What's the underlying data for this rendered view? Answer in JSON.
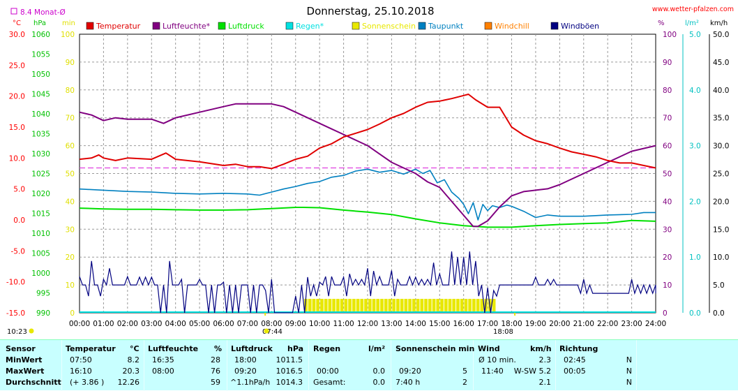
{
  "title": "Donnerstag, 25.10.2018",
  "site": "www.wetter-pfalzen.com",
  "monthly_avg_label": "8.4 Monat-Ø",
  "unit_labels": {
    "temp": "°C",
    "hpa": "hPa",
    "min": "min",
    "pct": "%",
    "lm2": "l/m²",
    "kmh": "km/h"
  },
  "sunrise_label": "07:44",
  "sunset_label": "18:08",
  "corner_time": "10:23",
  "colors": {
    "temperature": "#e00000",
    "humidity": "#800080",
    "pressure": "#00e000",
    "rain": "#00e0e0",
    "sunshine": "#e8e800",
    "dewpoint": "#0080c0",
    "windchill": "#ff8000",
    "gusts": "#000080",
    "avg_line": "#e040e0",
    "stats_bg": "#c8ffff"
  },
  "legend": [
    {
      "label": "Temperatur",
      "color": "#e00000"
    },
    {
      "label": "Luftfeuchte*",
      "color": "#800080"
    },
    {
      "label": "Luftdruck",
      "color": "#00e000"
    },
    {
      "label": "Regen*",
      "color": "#00e0e0"
    },
    {
      "label": "Sonnenschein",
      "color": "#e8e800"
    },
    {
      "label": "Taupunkt",
      "color": "#0080c0"
    },
    {
      "label": "Windchill",
      "color": "#ff8000"
    },
    {
      "label": "Windböen",
      "color": "#000080"
    }
  ],
  "chart_data": {
    "type": "line",
    "title": "Donnerstag, 25.10.2018",
    "x_unit": "hour of day",
    "x_ticks": [
      "00:00",
      "01:00",
      "02:00",
      "03:00",
      "04:00",
      "05:00",
      "06:00",
      "07:00",
      "08:00",
      "09:00",
      "10:00",
      "11:00",
      "12:00",
      "13:00",
      "14:00",
      "15:00",
      "16:00",
      "17:00",
      "18:00",
      "19:00",
      "20:00",
      "21:00",
      "22:00",
      "23:00",
      "24:00"
    ],
    "axes": {
      "temperature": {
        "unit": "°C",
        "range": [
          -15,
          30
        ],
        "ticks": [
          "30.0",
          "25.0",
          "20.0",
          "15.0",
          "10.0",
          "5.0",
          "0.0",
          "-5.0",
          "-10.0",
          "-15.0"
        ]
      },
      "pressure": {
        "unit": "hPa",
        "range": [
          990,
          1060
        ],
        "ticks": [
          "1060",
          "1055",
          "1050",
          "1045",
          "1040",
          "1035",
          "1030",
          "1025",
          "1020",
          "1015",
          "1010",
          "1005",
          "1000",
          "995",
          "990"
        ]
      },
      "minutes": {
        "unit": "min",
        "range": [
          0,
          100
        ],
        "ticks": [
          "100",
          "90",
          "80",
          "70",
          "60",
          "50",
          "40",
          "30",
          "20",
          "10",
          "0"
        ]
      },
      "humidity": {
        "unit": "%",
        "range": [
          0,
          100
        ],
        "ticks": [
          "100",
          "90",
          "80",
          "70",
          "60",
          "50",
          "40",
          "30",
          "20",
          "10",
          "0"
        ]
      },
      "rain": {
        "unit": "l/m²",
        "range": [
          0,
          5
        ],
        "ticks": [
          "5.0",
          "4.0",
          "3.0",
          "2.0",
          "1.0",
          "0.0"
        ]
      },
      "wind": {
        "unit": "km/h",
        "range": [
          0,
          50
        ],
        "ticks": [
          "50.0",
          "45.0",
          "40.0",
          "35.0",
          "30.0",
          "25.0",
          "20.0",
          "15.0",
          "10.0",
          "5.0",
          "0.0"
        ]
      }
    },
    "grid": true,
    "monthly_avg_temp": 8.4,
    "series": [
      {
        "name": "Temperatur",
        "axis": "temperature",
        "x": [
          0,
          0.5,
          0.8,
          1,
          1.5,
          2,
          3,
          3.6,
          4,
          5,
          6,
          6.5,
          7,
          7.5,
          8,
          8.5,
          9,
          9.5,
          10,
          10.5,
          11,
          11.5,
          12,
          12.5,
          13,
          13.5,
          14,
          14.5,
          15,
          15.5,
          16,
          16.2,
          16.5,
          17,
          17.5,
          18,
          18.5,
          19,
          19.5,
          20,
          20.5,
          21,
          21.5,
          22,
          22.5,
          23,
          23.5,
          24
        ],
        "y": [
          9.8,
          10.0,
          10.5,
          10.0,
          9.6,
          10.0,
          9.8,
          10.8,
          9.8,
          9.4,
          8.8,
          9.0,
          8.6,
          8.6,
          8.3,
          9.0,
          9.8,
          10.3,
          11.6,
          12.3,
          13.4,
          14.0,
          14.6,
          15.5,
          16.5,
          17.2,
          18.2,
          19.0,
          19.2,
          19.6,
          20.1,
          20.3,
          19.4,
          18.2,
          18.2,
          15.0,
          13.7,
          12.8,
          12.3,
          11.6,
          11.0,
          10.6,
          10.2,
          9.6,
          9.2,
          9.2,
          8.8,
          8.4
        ]
      },
      {
        "name": "Luftfeuchte*",
        "axis": "humidity",
        "x": [
          0,
          0.5,
          1,
          1.5,
          2,
          2.5,
          3,
          3.5,
          4,
          5,
          6,
          6.5,
          7,
          7.5,
          8,
          8.5,
          9,
          9.5,
          10,
          10.5,
          11,
          11.5,
          12,
          12.5,
          13,
          13.5,
          14,
          14.5,
          15,
          15.5,
          16,
          16.4,
          16.6,
          17,
          17.5,
          18,
          18.5,
          19,
          19.5,
          20,
          20.5,
          21,
          21.5,
          22,
          22.5,
          23,
          23.5,
          24
        ],
        "y": [
          72,
          71,
          69,
          70,
          69.5,
          69.5,
          69.5,
          68,
          70,
          72,
          74,
          75,
          75,
          75,
          75,
          74,
          72,
          70,
          68,
          66,
          64,
          62,
          60,
          57,
          54,
          52,
          50,
          47,
          45,
          40,
          35,
          31,
          31,
          33,
          38,
          42,
          43.5,
          44,
          44.5,
          46,
          48,
          50,
          52,
          54,
          56,
          58,
          59,
          60
        ]
      },
      {
        "name": "Luftdruck",
        "axis": "pressure",
        "x": [
          0,
          1,
          2,
          3,
          4,
          5,
          6,
          7,
          8,
          9,
          9.33,
          10,
          11,
          12,
          13,
          14,
          15,
          16,
          17,
          18,
          19,
          20,
          21,
          22,
          23,
          24
        ],
        "y": [
          1016.3,
          1016.1,
          1016.0,
          1016.0,
          1015.9,
          1015.8,
          1015.8,
          1015.9,
          1016.2,
          1016.5,
          1016.5,
          1016.4,
          1015.8,
          1015.3,
          1014.7,
          1013.6,
          1012.6,
          1011.9,
          1011.5,
          1011.5,
          1011.9,
          1012.2,
          1012.4,
          1012.6,
          1013.2,
          1013.0
        ]
      },
      {
        "name": "Taupunkt",
        "axis": "temperature",
        "x": [
          0,
          1,
          2,
          3,
          4,
          5,
          6,
          7,
          7.5,
          8,
          8.5,
          9,
          9.5,
          10,
          10.5,
          11,
          11.5,
          12,
          12.5,
          13,
          13.5,
          14,
          14.3,
          14.6,
          14.9,
          15.2,
          15.5,
          15.8,
          16,
          16.2,
          16.4,
          16.6,
          16.8,
          17,
          17.2,
          17.5,
          17.8,
          18,
          18.5,
          19,
          19.5,
          20,
          21,
          22,
          23,
          23.5,
          24
        ],
        "y": [
          5.0,
          4.8,
          4.6,
          4.5,
          4.3,
          4.2,
          4.3,
          4.2,
          4.0,
          4.5,
          5.0,
          5.4,
          5.9,
          6.2,
          6.9,
          7.2,
          7.9,
          8.2,
          7.7,
          8.0,
          7.4,
          8.2,
          7.5,
          8.0,
          6.0,
          6.5,
          4.5,
          3.5,
          2.5,
          1.0,
          2.8,
          0.0,
          2.5,
          1.5,
          2.3,
          2.0,
          2.4,
          2.2,
          1.4,
          0.4,
          0.8,
          0.6,
          0.6,
          0.8,
          0.9,
          1.2,
          1.2
        ]
      },
      {
        "name": "Windböen",
        "axis": "wind",
        "kind": "gusts_minmax",
        "x": [
          0,
          0.25,
          0.5,
          0.75,
          1,
          1.25,
          1.5,
          1.75,
          2,
          2.25,
          2.5,
          2.75,
          3,
          3.25,
          3.5,
          3.75,
          4,
          4.25,
          4.5,
          4.75,
          5,
          5.25,
          5.5,
          5.75,
          6,
          6.25,
          6.5,
          6.75,
          7,
          7.25,
          7.5,
          7.75,
          8,
          8.25,
          8.5,
          8.75,
          9,
          9.25,
          9.5,
          9.75,
          10,
          10.25,
          10.5,
          10.75,
          11,
          11.25,
          11.5,
          11.75,
          12,
          12.25,
          12.5,
          12.75,
          13,
          13.25,
          13.5,
          13.75,
          14,
          14.25,
          14.5,
          14.75,
          15,
          15.25,
          15.5,
          15.75,
          16,
          16.25,
          16.5,
          16.75,
          17,
          17.25,
          17.5,
          17.75,
          18,
          18.25,
          18.5,
          18.75,
          19,
          19.25,
          19.5,
          19.75,
          20,
          20.25,
          20.5,
          20.75,
          21,
          21.25,
          21.5,
          21.75,
          22,
          22.25,
          22.5,
          22.75,
          23,
          23.25,
          23.5,
          23.75,
          24
        ],
        "y": [
          6.5,
          5.0,
          9.3,
          5.0,
          6.0,
          8.0,
          5.0,
          5.0,
          6.5,
          5.0,
          6.4,
          6.4,
          6.4,
          5.0,
          5.0,
          9.3,
          5.0,
          6.0,
          5.0,
          5.0,
          6.0,
          5.0,
          5.0,
          5.0,
          5.5,
          5.0,
          5.0,
          5.0,
          5.0,
          5.0,
          5.0,
          4.0,
          6.0,
          0.0,
          0.0,
          0.0,
          3.0,
          5.0,
          6.4,
          5.0,
          5.5,
          6.5,
          6.5,
          5.0,
          6.4,
          7.0,
          6.0,
          6.0,
          8.0,
          7.5,
          6.5,
          5.0,
          7.6,
          6.0,
          5.0,
          6.5,
          6.4,
          6.0,
          6.0,
          9.0,
          7.0,
          5.0,
          11.0,
          10.0,
          10.0,
          11.0,
          9.3,
          5.0,
          4.5,
          4.0,
          5.0,
          5.0,
          5.0,
          5.0,
          5.0,
          5.0,
          6.4,
          5.0,
          6.0,
          6.0,
          5.0,
          5.0,
          5.0,
          5.0,
          6.0,
          5.0,
          3.5,
          3.5,
          3.5,
          3.5,
          3.5,
          3.5,
          6.0,
          5.0,
          5.0,
          5.0,
          5.0
        ],
        "y_low": [
          5.0,
          3.0,
          5.0,
          3.0,
          5.0,
          5.0,
          5.0,
          5.0,
          5.0,
          5.0,
          5.0,
          5.0,
          5.0,
          0.0,
          0.0,
          5.0,
          5.0,
          0.0,
          5.0,
          5.0,
          5.0,
          0.0,
          0.0,
          5.0,
          0.0,
          0.0,
          0.0,
          5.0,
          0.0,
          0.0,
          5.0,
          0.0,
          0.0,
          0.0,
          0.0,
          0.0,
          0.0,
          0.0,
          3.0,
          3.0,
          5.0,
          3.0,
          5.0,
          5.0,
          3.0,
          5.0,
          5.0,
          5.0,
          3.0,
          5.0,
          5.0,
          5.0,
          3.0,
          5.0,
          5.0,
          5.0,
          5.0,
          5.0,
          5.0,
          5.0,
          5.0,
          5.0,
          5.0,
          5.0,
          5.0,
          5.0,
          3.0,
          0.0,
          0.0,
          3.0,
          5.0,
          5.0,
          5.0,
          5.0,
          5.0,
          5.0,
          5.0,
          5.0,
          5.0,
          5.0,
          5.0,
          5.0,
          5.0,
          3.5,
          3.5,
          3.5,
          3.5,
          3.5,
          3.5,
          3.5,
          3.5,
          3.5,
          3.5,
          3.5,
          3.5,
          3.5,
          3.5
        ]
      },
      {
        "name": "Sonnenschein",
        "axis": "minutes",
        "kind": "bars",
        "intervals": [
          [
            9.33,
            13.67
          ],
          [
            13.83,
            16.67
          ],
          [
            16.83,
            17.33
          ]
        ],
        "value": 5
      },
      {
        "name": "Regen*",
        "axis": "rain",
        "values_all": 0.0
      }
    ]
  },
  "stats": {
    "headers": {
      "sensor": "Sensor",
      "temperature": "Temperatur",
      "temp_unit": "°C",
      "humidity": "Luftfeuchte",
      "hum_unit": "%",
      "pressure": "Luftdruck",
      "press_unit": "hPa",
      "rain": "Regen",
      "rain_unit": "l/m²",
      "sun": "Sonnenschein min",
      "wind": "Wind",
      "wind_unit": "km/h",
      "direction": "Richtung"
    },
    "rows": [
      {
        "label": "MinWert",
        "t_time": "07:50",
        "t_val": "8.2",
        "h_time": "16:35",
        "h_val": "28",
        "p_time": "18:00",
        "p_val": "1011.5",
        "r_time": "",
        "r_val": "",
        "s_time": "",
        "s_val": "",
        "w_time": "Ø 10 min.",
        "w_val": "2.3",
        "d_time": "02:45",
        "d_val": "N"
      },
      {
        "label": "MaxWert",
        "t_time": "16:10",
        "t_val": "20.3",
        "h_time": "08:00",
        "h_val": "76",
        "p_time": "09:20",
        "p_val": "1016.5",
        "r_time": "00:00",
        "r_val": "0.0",
        "s_time": "09:20",
        "s_val": "5",
        "w_time": "11:40",
        "w_val": "W-SW 5.2",
        "d_time": "00:05",
        "d_val": "N"
      },
      {
        "label": "Durchschnitt",
        "t_time": "(+ 3.86 )",
        "t_val": "12.26",
        "h_time": "",
        "h_val": "59",
        "p_time": "^1.1hPa/h",
        "p_val": "1014.3",
        "r_time": "Gesamt:",
        "r_val": "0.0",
        "s_time": "7:40 h",
        "s_val": "2",
        "w_time": "",
        "w_val": "2.1",
        "d_time": "",
        "d_val": "N"
      }
    ]
  }
}
